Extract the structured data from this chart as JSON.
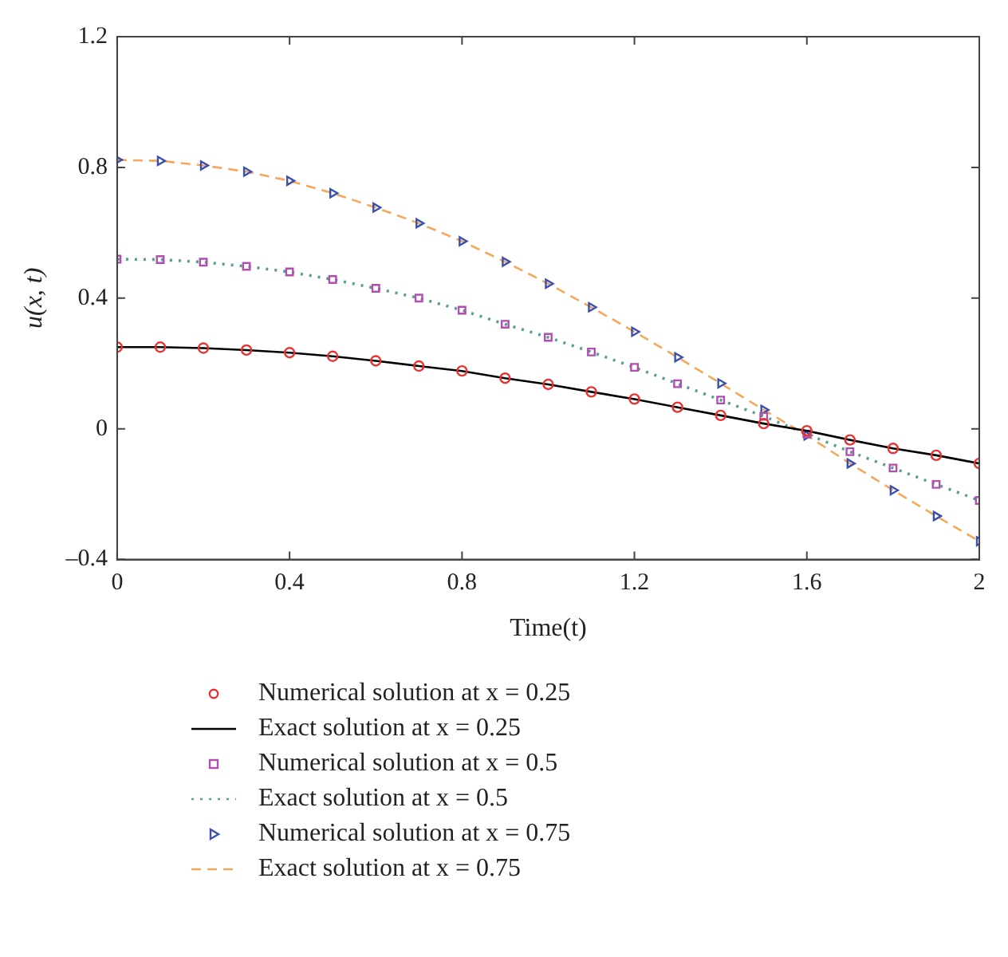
{
  "chart_data": {
    "type": "line",
    "xlabel": "Time(t)",
    "ylabel": "u(x, t)",
    "x": [
      0,
      0.1,
      0.2,
      0.3,
      0.4,
      0.5,
      0.6,
      0.7,
      0.8,
      0.9,
      1.0,
      1.1,
      1.2,
      1.3,
      1.4,
      1.5,
      1.6,
      1.7,
      1.8,
      1.9,
      2.0
    ],
    "xlim": [
      0,
      2
    ],
    "xticks": [
      0,
      0.4,
      0.8,
      1.2,
      1.6,
      2
    ],
    "ylim": [
      -0.4,
      1.2
    ],
    "yticks": [
      {
        "value": -0.4,
        "label": "–0.4"
      },
      0,
      0.4,
      0.8,
      1.2
    ],
    "grid": false,
    "legend": "bottom",
    "series": [
      {
        "name": "Numerical solution at x = 0.25",
        "type": "scatter",
        "marker": "circle",
        "color": "#e8322f",
        "values": [
          0.25,
          0.25,
          0.247,
          0.241,
          0.233,
          0.222,
          0.208,
          0.192,
          0.177,
          0.155,
          0.136,
          0.113,
          0.091,
          0.066,
          0.041,
          0.016,
          -0.006,
          -0.034,
          -0.06,
          -0.081,
          -0.106
        ]
      },
      {
        "name": "Exact solution at x = 0.25",
        "type": "line",
        "marker": "none",
        "line_style": "solid",
        "color": "#000000",
        "values": [
          0.25,
          0.25,
          0.247,
          0.241,
          0.233,
          0.222,
          0.208,
          0.192,
          0.177,
          0.155,
          0.136,
          0.113,
          0.091,
          0.066,
          0.041,
          0.016,
          -0.006,
          -0.034,
          -0.06,
          -0.081,
          -0.106
        ]
      },
      {
        "name": "Numerical solution at x = 0.5",
        "type": "scatter",
        "marker": "square",
        "color": "#b04fb0",
        "values": [
          0.519,
          0.518,
          0.51,
          0.497,
          0.48,
          0.457,
          0.43,
          0.4,
          0.363,
          0.32,
          0.28,
          0.235,
          0.188,
          0.138,
          0.088,
          0.038,
          -0.016,
          -0.07,
          -0.12,
          -0.17,
          -0.219
        ]
      },
      {
        "name": "Exact solution at x = 0.5",
        "type": "line",
        "marker": "none",
        "line_style": "dotted",
        "color": "#5a9e8f",
        "values": [
          0.519,
          0.518,
          0.51,
          0.497,
          0.48,
          0.457,
          0.43,
          0.4,
          0.363,
          0.32,
          0.28,
          0.235,
          0.188,
          0.138,
          0.088,
          0.038,
          -0.016,
          -0.07,
          -0.12,
          -0.17,
          -0.219
        ]
      },
      {
        "name": "Numerical solution at x = 0.75",
        "type": "scatter",
        "marker": "triangle",
        "color": "#3a4fb0",
        "values": [
          0.823,
          0.82,
          0.806,
          0.787,
          0.759,
          0.721,
          0.677,
          0.629,
          0.574,
          0.511,
          0.444,
          0.372,
          0.297,
          0.219,
          0.139,
          0.058,
          -0.02,
          -0.106,
          -0.188,
          -0.267,
          -0.344
        ]
      },
      {
        "name": "Exact solution at x = 0.75",
        "type": "line",
        "marker": "none",
        "line_style": "dashed",
        "color": "#f5a85a",
        "values": [
          0.823,
          0.82,
          0.806,
          0.787,
          0.759,
          0.721,
          0.677,
          0.629,
          0.574,
          0.511,
          0.444,
          0.372,
          0.297,
          0.219,
          0.139,
          0.058,
          -0.02,
          -0.106,
          -0.188,
          -0.267,
          -0.344
        ]
      }
    ]
  }
}
